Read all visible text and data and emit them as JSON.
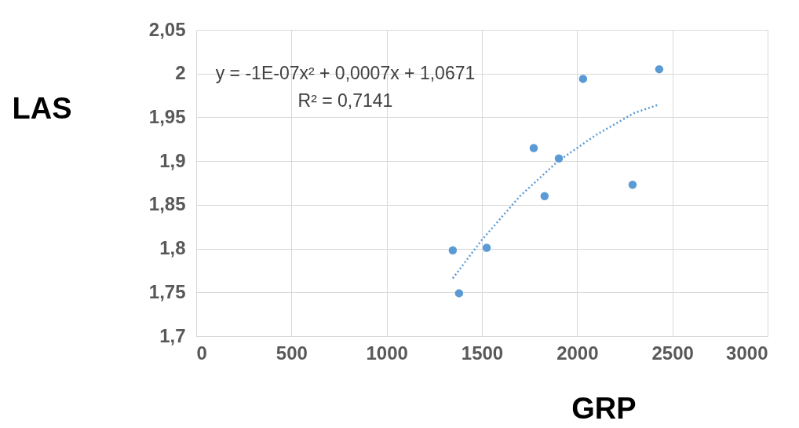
{
  "chart_data": {
    "type": "scatter",
    "xlabel": "GRP",
    "ylabel": "LAS",
    "xlim": [
      0,
      3000
    ],
    "xticks": [
      0,
      500,
      1000,
      1500,
      2000,
      2500,
      3000
    ],
    "ylim": [
      1.7,
      2.05
    ],
    "yticks": [
      {
        "value": 1.7,
        "label": "1,7"
      },
      {
        "value": 1.75,
        "label": "1,75"
      },
      {
        "value": 1.8,
        "label": "1,8"
      },
      {
        "value": 1.85,
        "label": "1,85"
      },
      {
        "value": 1.9,
        "label": "1,9"
      },
      {
        "value": 1.95,
        "label": "1,95"
      },
      {
        "value": 2.0,
        "label": "2"
      },
      {
        "value": 2.05,
        "label": "2,05"
      }
    ],
    "grid": true,
    "series": [
      {
        "color": "#5b9bd5",
        "marker": "circle",
        "x": [
          1347,
          1380,
          1525,
          1772,
          1829,
          1904,
          2031,
          2291,
          2431
        ],
        "values": [
          1.798,
          1.749,
          1.801,
          1.915,
          1.86,
          1.903,
          1.994,
          1.873,
          2.005
        ]
      },
      {
        "type": "line",
        "color": "#5b9bd5",
        "line_style": "dotted",
        "marker": "none",
        "x": [
          1347,
          1500,
          1700,
          1900,
          2100,
          2300,
          2420
        ],
        "values": [
          1.766,
          1.81,
          1.86,
          1.9,
          1.93,
          1.955,
          1.964
        ]
      }
    ],
    "annotations": [
      "y = -1E-07x² + 0,0007x + 1,0671",
      "R² = 0,7141"
    ]
  }
}
